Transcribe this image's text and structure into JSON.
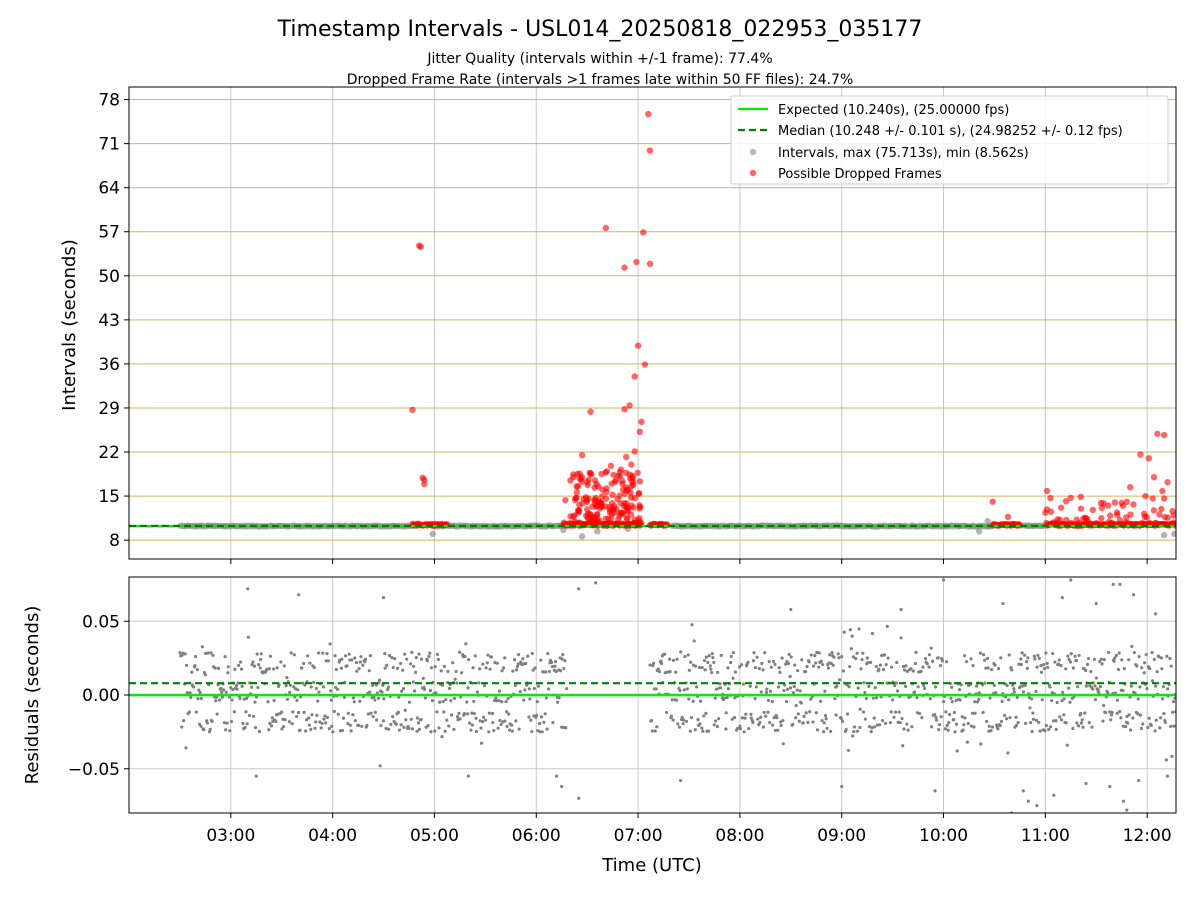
{
  "title": "Timestamp Intervals - USL014_20250818_022953_035177",
  "subtitle_1": "Jitter Quality (intervals within +/-1 frame): 77.4%",
  "subtitle_2": "Dropped Frame Rate (intervals >1 frames late within 50 FF files): 24.7%",
  "colors": {
    "expected": "#00ee00",
    "median": "#008000",
    "intervals": "#808080",
    "dropped": "#ff0000",
    "hgrid_top": "#d4b25c",
    "grid": "#c8c8c8"
  },
  "chart_data": [
    {
      "type": "scatter",
      "ylabel": "Intervals (seconds)",
      "ylim": [
        5.0,
        80.0
      ],
      "xlim": [
        "02:00",
        "12:17"
      ],
      "yticks": [
        "8",
        "15",
        "22",
        "29",
        "36",
        "43",
        "50",
        "57",
        "64",
        "71",
        "78"
      ],
      "grid": true,
      "legend_position": "top-right",
      "lines": [
        {
          "name": "Expected (10.240s), (25.00000 fps)",
          "style": "solid",
          "y": 10.24
        },
        {
          "name": "Median (10.248 +/- 0.101 s), (24.98252 +/- 0.12 fps)",
          "style": "dashed",
          "y": 10.248
        }
      ],
      "series": [
        {
          "name": "Intervals, max (75.713s), min (8.562s)",
          "segments": [
            [
              "02:30",
              "04:47"
            ],
            [
              "05:00",
              "06:16"
            ],
            [
              "07:20",
              "10:29"
            ],
            [
              "10:47",
              "10:59"
            ]
          ],
          "outliers": [
            {
              "x": "04:59",
              "y": 9.0
            },
            {
              "x": "06:16",
              "y": 9.6
            },
            {
              "x": "06:27",
              "y": 8.6
            },
            {
              "x": "06:36",
              "y": 9.4
            },
            {
              "x": "06:54",
              "y": 9.8
            },
            {
              "x": "10:21",
              "y": 9.4
            },
            {
              "x": "10:26",
              "y": 11.0
            },
            {
              "x": "12:10",
              "y": 8.8
            },
            {
              "x": "12:16",
              "y": 9.0
            }
          ]
        },
        {
          "name": "Possible Dropped Frames",
          "band_segments": [
            [
              "04:47",
              "05:07"
            ],
            [
              "06:16",
              "07:01"
            ],
            [
              "07:07",
              "07:17"
            ],
            [
              "10:29",
              "10:45"
            ],
            [
              "11:00",
              "12:17"
            ]
          ],
          "points": [
            {
              "x": "04:47",
              "y": 28.7
            },
            {
              "x": "04:51",
              "y": 54.8
            },
            {
              "x": "04:52",
              "y": 54.6
            },
            {
              "x": "04:53",
              "y": 17.9
            },
            {
              "x": "04:54",
              "y": 16.9
            },
            {
              "x": "04:54",
              "y": 17.6
            },
            {
              "x": "06:27",
              "y": 21.5
            },
            {
              "x": "06:32",
              "y": 28.4
            },
            {
              "x": "06:41",
              "y": 57.6
            },
            {
              "x": "06:52",
              "y": 51.3
            },
            {
              "x": "06:52",
              "y": 28.8
            },
            {
              "x": "06:55",
              "y": 29.4
            },
            {
              "x": "06:58",
              "y": 34.0
            },
            {
              "x": "06:59",
              "y": 52.2
            },
            {
              "x": "07:00",
              "y": 38.9
            },
            {
              "x": "07:03",
              "y": 56.9
            },
            {
              "x": "07:02",
              "y": 26.8
            },
            {
              "x": "07:01",
              "y": 25.2
            },
            {
              "x": "07:04",
              "y": 35.9
            },
            {
              "x": "07:06",
              "y": 75.7
            },
            {
              "x": "07:07",
              "y": 51.9
            },
            {
              "x": "07:07",
              "y": 69.9
            },
            {
              "x": "06:44",
              "y": 19.8
            },
            {
              "x": "06:47",
              "y": 17.5
            },
            {
              "x": "06:50",
              "y": 19.2
            },
            {
              "x": "06:53",
              "y": 21.2
            },
            {
              "x": "06:56",
              "y": 20.0
            },
            {
              "x": "06:58",
              "y": 22.1
            },
            {
              "x": "06:39",
              "y": 16.0
            },
            {
              "x": "06:35",
              "y": 14.7
            },
            {
              "x": "06:57",
              "y": 17.9
            },
            {
              "x": "06:45",
              "y": 15.2
            },
            {
              "x": "06:30",
              "y": 12.9
            },
            {
              "x": "06:52",
              "y": 13.9
            },
            {
              "x": "10:29",
              "y": 14.1
            },
            {
              "x": "10:38",
              "y": 11.7
            },
            {
              "x": "11:01",
              "y": 15.8
            },
            {
              "x": "11:21",
              "y": 13.0
            },
            {
              "x": "11:37",
              "y": 13.5
            },
            {
              "x": "11:50",
              "y": 16.4
            },
            {
              "x": "11:56",
              "y": 21.6
            },
            {
              "x": "12:01",
              "y": 21.0
            },
            {
              "x": "12:06",
              "y": 24.9
            },
            {
              "x": "12:10",
              "y": 24.7
            },
            {
              "x": "12:04",
              "y": 18.0
            },
            {
              "x": "12:12",
              "y": 17.2
            },
            {
              "x": "12:09",
              "y": 15.8
            },
            {
              "x": "11:59",
              "y": 15.0
            },
            {
              "x": "11:45",
              "y": 13.9
            },
            {
              "x": "11:28",
              "y": 12.8
            }
          ]
        }
      ]
    },
    {
      "type": "scatter",
      "ylabel": "Residuals (seconds)",
      "xlabel": "Time (UTC)",
      "ylim": [
        -0.08,
        0.08
      ],
      "xlim": [
        "02:00",
        "12:17"
      ],
      "yticks": [
        "0.05",
        "0.00",
        "−0.05"
      ],
      "xticks": [
        "03:00",
        "04:00",
        "05:00",
        "06:00",
        "07:00",
        "08:00",
        "09:00",
        "10:00",
        "11:00",
        "12:00"
      ],
      "grid": true,
      "lines": [
        {
          "name": "Expected",
          "style": "solid",
          "y": 0.0
        },
        {
          "name": "Median",
          "style": "dashed",
          "y": 0.008
        }
      ],
      "series": [
        {
          "name": "Residuals",
          "segments": [
            [
              "02:30",
              "06:18"
            ],
            [
              "07:07",
              "12:17"
            ]
          ],
          "bands": [
            -0.018,
            0.002,
            0.022
          ],
          "outliers": [
            {
              "x": "03:10",
              "y": 0.072
            },
            {
              "x": "03:40",
              "y": 0.068
            },
            {
              "x": "04:30",
              "y": 0.066
            },
            {
              "x": "06:25",
              "y": 0.072
            },
            {
              "x": "06:35",
              "y": 0.076
            },
            {
              "x": "06:15",
              "y": -0.062
            },
            {
              "x": "06:25",
              "y": -0.07
            },
            {
              "x": "03:15",
              "y": -0.055
            },
            {
              "x": "04:28",
              "y": -0.048
            },
            {
              "x": "05:20",
              "y": -0.055
            },
            {
              "x": "06:12",
              "y": -0.055
            },
            {
              "x": "08:30",
              "y": 0.058
            },
            {
              "x": "09:35",
              "y": 0.058
            },
            {
              "x": "09:55",
              "y": -0.065
            },
            {
              "x": "10:00",
              "y": 0.078
            },
            {
              "x": "10:40",
              "y": -0.08
            },
            {
              "x": "10:47",
              "y": -0.065
            },
            {
              "x": "10:50",
              "y": -0.072
            },
            {
              "x": "10:55",
              "y": -0.075
            },
            {
              "x": "11:05",
              "y": -0.068
            },
            {
              "x": "11:10",
              "y": 0.066
            },
            {
              "x": "11:15",
              "y": 0.078
            },
            {
              "x": "11:24",
              "y": -0.06
            },
            {
              "x": "11:30",
              "y": 0.062
            },
            {
              "x": "11:38",
              "y": -0.062
            },
            {
              "x": "11:40",
              "y": 0.075
            },
            {
              "x": "11:44",
              "y": 0.075
            },
            {
              "x": "11:46",
              "y": -0.072
            },
            {
              "x": "11:48",
              "y": -0.078
            },
            {
              "x": "11:52",
              "y": 0.068
            },
            {
              "x": "11:55",
              "y": -0.058
            },
            {
              "x": "12:05",
              "y": 0.055
            },
            {
              "x": "12:12",
              "y": -0.055
            },
            {
              "x": "09:00",
              "y": -0.062
            },
            {
              "x": "07:25",
              "y": -0.058
            },
            {
              "x": "10:35",
              "y": 0.062
            }
          ]
        }
      ]
    }
  ]
}
